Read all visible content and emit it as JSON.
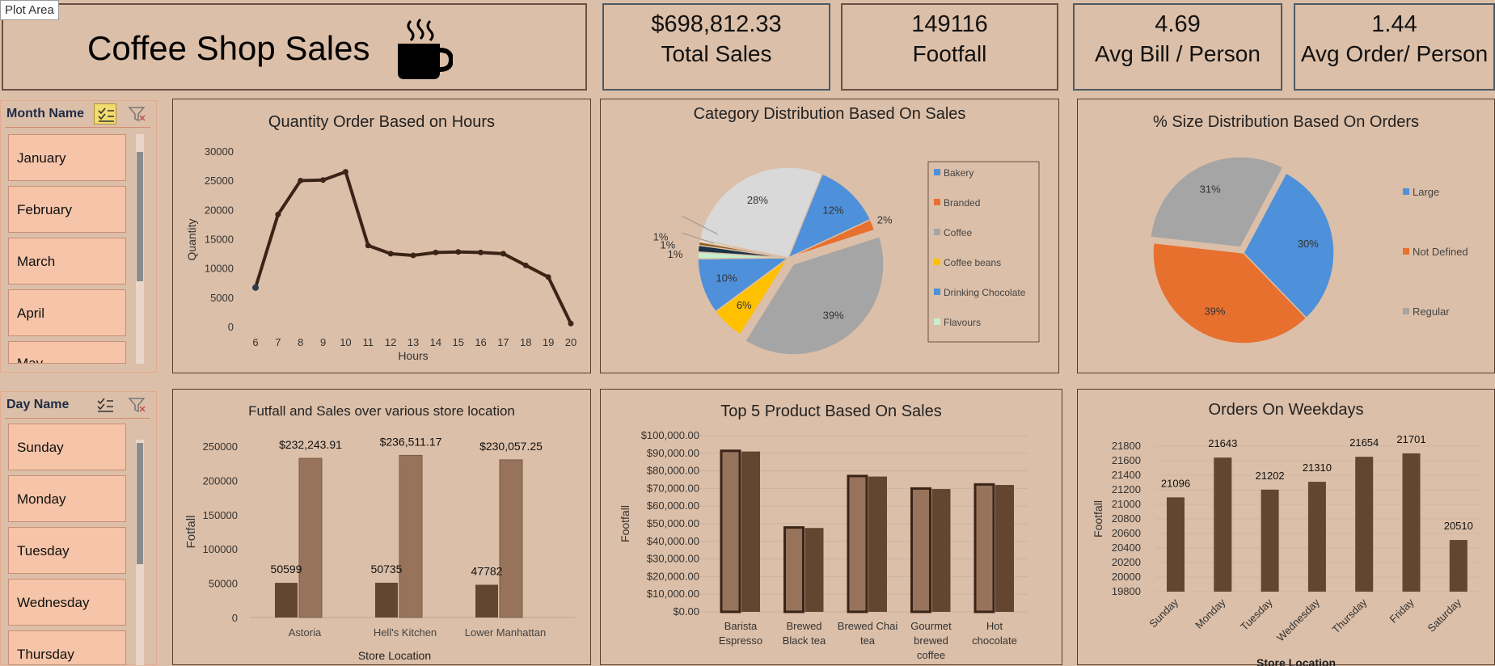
{
  "tooltip": "Plot Area",
  "header": {
    "title": "Coffee Shop Sales"
  },
  "kpis": [
    {
      "value": "$698,812.33",
      "label": "Total Sales"
    },
    {
      "value": "149116",
      "label": "Footfall"
    },
    {
      "value": "4.69",
      "label": "Avg Bill / Person"
    },
    {
      "value": "1.44",
      "label": "Avg Order/ Person"
    }
  ],
  "slicers": {
    "month": {
      "title": "Month Name",
      "items": [
        "January",
        "February",
        "March",
        "April",
        "May"
      ]
    },
    "day": {
      "title": "Day Name",
      "items": [
        "Sunday",
        "Monday",
        "Tuesday",
        "Wednesday",
        "Thursday"
      ]
    }
  },
  "colors": {
    "bg": "#dcbfa8",
    "dark_brown": "#3b2417",
    "bar_dark": "#634530",
    "bar_light": "#96735a",
    "blue": "#4e90d9",
    "orange": "#e8702f",
    "gray": "#a5a5a5",
    "yellow": "#ffc000"
  },
  "chart_data": [
    {
      "type": "line",
      "title": "Quantity Order Based on Hours",
      "xlabel": "Hours",
      "ylabel": "Quantity",
      "x": [
        6,
        7,
        8,
        9,
        10,
        11,
        12,
        13,
        14,
        15,
        16,
        17,
        18,
        19,
        20
      ],
      "values": [
        6800,
        19300,
        25100,
        25200,
        26600,
        14000,
        12600,
        12300,
        12800,
        12900,
        12800,
        12600,
        10600,
        8600,
        650
      ],
      "ylim": [
        0,
        30000
      ],
      "yticks": [
        "0",
        "5000",
        "10000",
        "15000",
        "20000",
        "25000",
        "30000"
      ]
    },
    {
      "type": "pie",
      "title": "Category Distribution Based On Sales",
      "legend": [
        "Bakery",
        "Branded",
        "Coffee",
        "Coffee beans",
        "Drinking Chocolate",
        "Flavours"
      ],
      "slices": [
        {
          "label": "12%",
          "value": 12,
          "color": "#4e90d9"
        },
        {
          "label": "2%",
          "value": 2,
          "color": "#e8702f"
        },
        {
          "label": "39%",
          "value": 39,
          "color": "#a5a5a5"
        },
        {
          "label": "6%",
          "value": 6,
          "color": "#ffc000"
        },
        {
          "label": "10%",
          "value": 10,
          "color": "#4e90d9"
        },
        {
          "label": "1%",
          "value": 1.2,
          "color": "#c6efce"
        },
        {
          "label": "1%",
          "value": 1.2,
          "color": "#1a3347"
        },
        {
          "label": "1%",
          "value": 0.6,
          "color": "#8a5a1a"
        },
        {
          "label": "",
          "value": 0.4,
          "color": "#f0f0f0"
        },
        {
          "label": "28%",
          "value": 28,
          "color": "#d9d9d9"
        }
      ]
    },
    {
      "type": "pie",
      "title": "% Size Distribution Based On Orders",
      "legend": [
        "Large",
        "Not Defined",
        "Regular"
      ],
      "slices": [
        {
          "label": "30%",
          "value": 30,
          "color": "#4e90d9"
        },
        {
          "label": "39%",
          "value": 39,
          "color": "#e8702f"
        },
        {
          "label": "31%",
          "value": 31,
          "color": "#a5a5a5"
        }
      ]
    },
    {
      "type": "bar",
      "title": "Futfall and Sales over various store location",
      "xlabel": "Store Location",
      "ylabel": "Fotfall",
      "categories": [
        "Astoria",
        "Hell's Kitchen",
        "Lower Manhattan"
      ],
      "series": [
        {
          "values": [
            50599,
            50735,
            47782
          ],
          "labels": [
            "50599",
            "50735",
            "47782"
          ]
        },
        {
          "values": [
            232243.91,
            236511.17,
            230057.25
          ],
          "labels": [
            "$232,243.91",
            "$236,511.17",
            "$230,057.25"
          ]
        }
      ],
      "ylim": [
        0,
        250000
      ],
      "yticks": [
        "0",
        "50000",
        "100000",
        "150000",
        "200000",
        "250000"
      ]
    },
    {
      "type": "bar",
      "title": "Top 5 Product Based On Sales",
      "ylabel": "Footfall",
      "categories": [
        [
          "Barista",
          "Espresso"
        ],
        [
          "Brewed",
          "Black tea"
        ],
        [
          "Brewed Chai",
          "tea"
        ],
        [
          "Gourmet",
          "brewed",
          "coffee"
        ],
        [
          "Hot",
          "chocolate"
        ]
      ],
      "series": [
        {
          "values": [
            91400,
            47900,
            77100,
            70000,
            72300
          ]
        },
        {
          "values": [
            91000,
            47600,
            76800,
            69700,
            72000
          ]
        }
      ],
      "ylim": [
        0,
        100000
      ],
      "yticks": [
        "$0.00",
        "$10,000.00",
        "$20,000.00",
        "$30,000.00",
        "$40,000.00",
        "$50,000.00",
        "$60,000.00",
        "$70,000.00",
        "$80,000.00",
        "$90,000.00",
        "$100,000.00"
      ]
    },
    {
      "type": "bar",
      "title": "Orders On Weekdays",
      "xlabel": "Store Location",
      "ylabel": "Footfall",
      "categories": [
        "Sunday",
        "Monday",
        "Tuesday",
        "Wednesday",
        "Thursday",
        "Friday",
        "Saturday"
      ],
      "values": [
        21096,
        21643,
        21202,
        21310,
        21654,
        21701,
        20510
      ],
      "ylim": [
        19800,
        21800
      ],
      "yticks": [
        "19800",
        "20000",
        "20200",
        "20400",
        "20600",
        "20800",
        "21000",
        "21200",
        "21400",
        "21600",
        "21800"
      ]
    }
  ]
}
